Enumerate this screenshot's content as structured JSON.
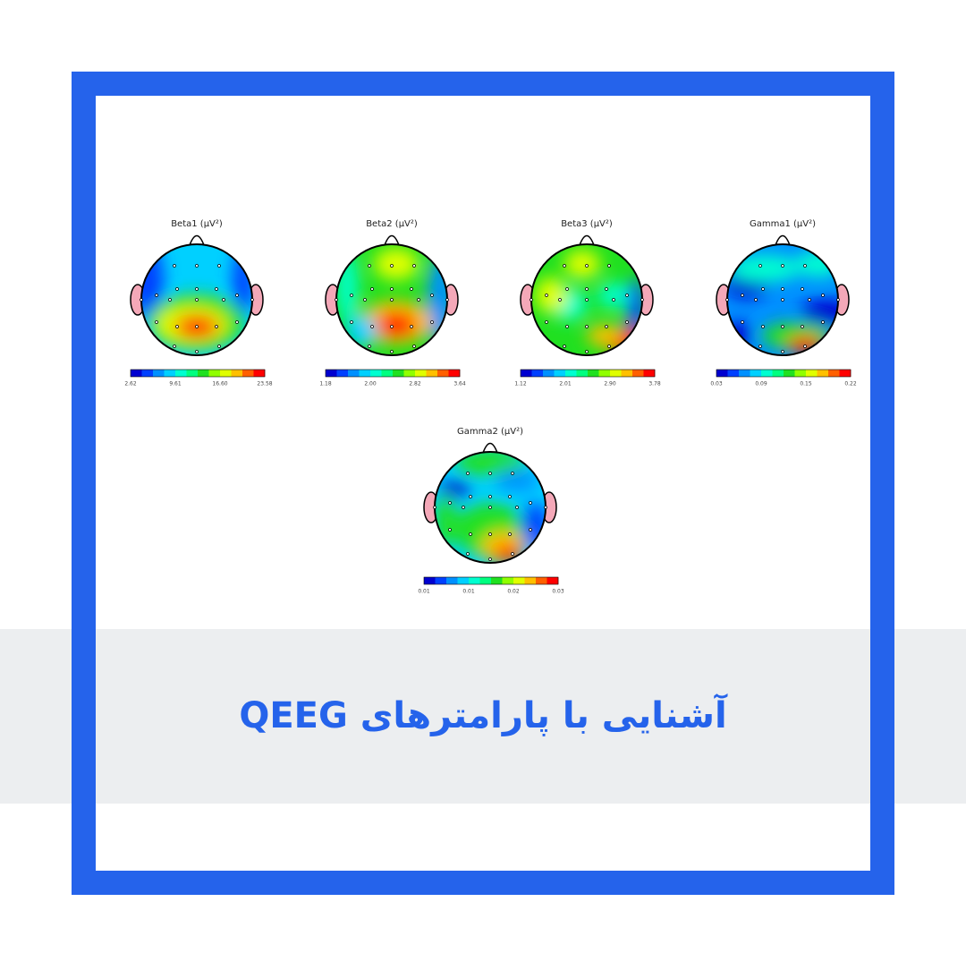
{
  "maps": [
    {
      "title": "Beta1 (μV²)",
      "ticks": [
        "2.62",
        "9.61",
        "16.60",
        "23.58"
      ]
    },
    {
      "title": "Beta2 (μV²)",
      "ticks": [
        "1.18",
        "2.00",
        "2.82",
        "3.64"
      ]
    },
    {
      "title": "Beta3 (μV²)",
      "ticks": [
        "1.12",
        "2.01",
        "2.90",
        "3.78"
      ]
    },
    {
      "title": "Gamma1 (μV²)",
      "ticks": [
        "0.03",
        "0.09",
        "0.15",
        "0.22"
      ]
    },
    {
      "title": "Gamma2 (μV²)",
      "ticks": [
        "0.01",
        "0.01",
        "0.02",
        "0.03"
      ]
    }
  ],
  "caption": "آشنایی با پارامترهای QEEG"
}
